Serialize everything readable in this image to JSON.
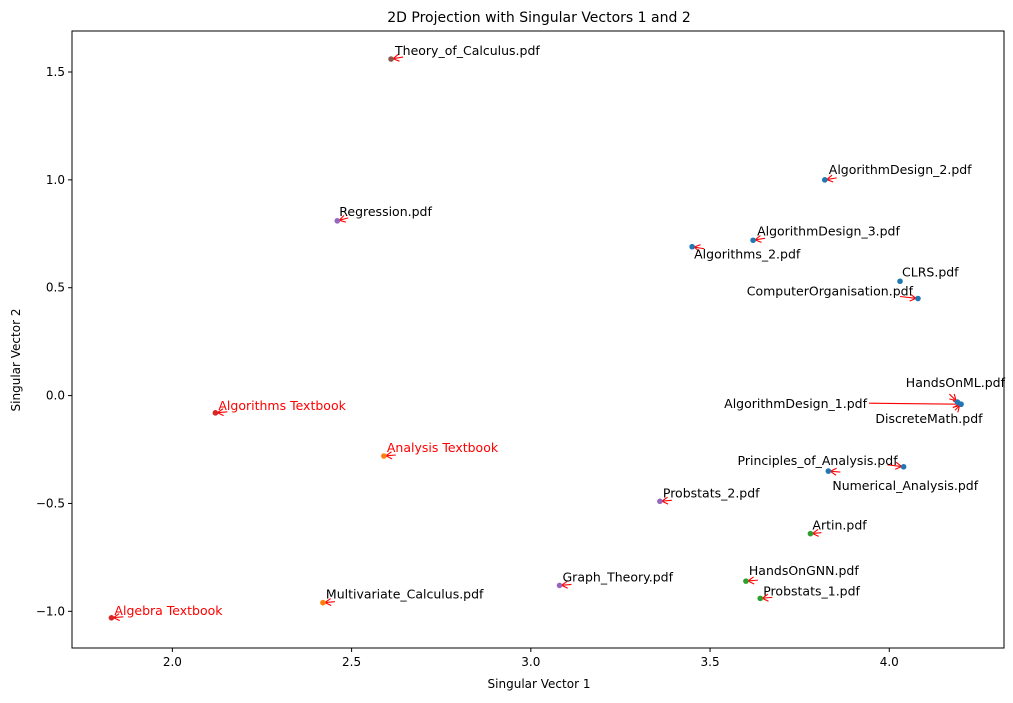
{
  "chart_data": {
    "type": "scatter",
    "title": "2D Projection with Singular Vectors 1 and 2",
    "xlabel": "Singular Vector 1",
    "ylabel": "Singular Vector 2",
    "xlim": [
      1.72,
      4.32
    ],
    "ylim": [
      -1.17,
      1.69
    ],
    "xticks": [
      2.0,
      2.5,
      3.0,
      3.5,
      4.0
    ],
    "xtick_labels": [
      "2.0",
      "2.5",
      "3.0",
      "3.5",
      "4.0"
    ],
    "yticks": [
      -1.0,
      -0.5,
      0.0,
      0.5,
      1.0,
      1.5
    ],
    "ytick_labels": [
      "−1.0",
      "−0.5",
      "0.0",
      "0.5",
      "1.0",
      "1.5"
    ],
    "grid": false,
    "arrow_color": "#ff0000",
    "points": [
      {
        "label": "Theory_of_Calculus.pdf",
        "x": 2.61,
        "y": 1.56,
        "color": "#8c564b",
        "label_color": "#000000"
      },
      {
        "label": "AlgorithmDesign_2.pdf",
        "x": 3.82,
        "y": 1.0,
        "color": "#1f77b4",
        "label_color": "#000000"
      },
      {
        "label": "Regression.pdf",
        "x": 2.46,
        "y": 0.81,
        "color": "#9467bd",
        "label_color": "#000000"
      },
      {
        "label": "AlgorithmDesign_3.pdf",
        "x": 3.62,
        "y": 0.72,
        "color": "#1f77b4",
        "label_color": "#000000"
      },
      {
        "label": "Algorithms_2.pdf",
        "x": 3.45,
        "y": 0.69,
        "color": "#1f77b4",
        "label_color": "#000000"
      },
      {
        "label": "CLRS.pdf",
        "x": 4.03,
        "y": 0.53,
        "color": "#1f77b4",
        "label_color": "#000000"
      },
      {
        "label": "ComputerOrganisation.pdf",
        "x": 4.08,
        "y": 0.45,
        "color": "#1f77b4",
        "label_color": "#000000"
      },
      {
        "label": "HandsOnML.pdf",
        "x": 4.19,
        "y": -0.03,
        "color": "#1f77b4",
        "label_color": "#000000"
      },
      {
        "label": "AlgorithmDesign_1.pdf",
        "x": 4.2,
        "y": -0.04,
        "color": "#1f77b4",
        "label_color": "#000000"
      },
      {
        "label": "DiscreteMath.pdf",
        "x": 4.2,
        "y": -0.04,
        "color": "#1f77b4",
        "label_color": "#000000"
      },
      {
        "label": "Algorithms Textbook",
        "x": 2.12,
        "y": -0.08,
        "color": "#d62728",
        "label_color": "#ff0000"
      },
      {
        "label": "Analysis Textbook",
        "x": 2.59,
        "y": -0.28,
        "color": "#ff7f0e",
        "label_color": "#ff0000"
      },
      {
        "label": "Principles_of_Analysis.pdf",
        "x": 4.04,
        "y": -0.33,
        "color": "#1f77b4",
        "label_color": "#000000"
      },
      {
        "label": "Numerical_Analysis.pdf",
        "x": 3.83,
        "y": -0.35,
        "color": "#1f77b4",
        "label_color": "#000000"
      },
      {
        "label": "Probstats_2.pdf",
        "x": 3.36,
        "y": -0.49,
        "color": "#9467bd",
        "label_color": "#000000"
      },
      {
        "label": "Artin.pdf",
        "x": 3.78,
        "y": -0.64,
        "color": "#2ca02c",
        "label_color": "#000000"
      },
      {
        "label": "HandsOnGNN.pdf",
        "x": 3.6,
        "y": -0.86,
        "color": "#2ca02c",
        "label_color": "#000000"
      },
      {
        "label": "Graph_Theory.pdf",
        "x": 3.08,
        "y": -0.88,
        "color": "#9467bd",
        "label_color": "#000000"
      },
      {
        "label": "Probstats_1.pdf",
        "x": 3.64,
        "y": -0.94,
        "color": "#2ca02c",
        "label_color": "#000000"
      },
      {
        "label": "Multivariate_Calculus.pdf",
        "x": 2.42,
        "y": -0.96,
        "color": "#ff7f0e",
        "label_color": "#000000"
      },
      {
        "label": "Algebra Textbook",
        "x": 1.83,
        "y": -1.03,
        "color": "#d62728",
        "label_color": "#ff0000"
      }
    ]
  }
}
